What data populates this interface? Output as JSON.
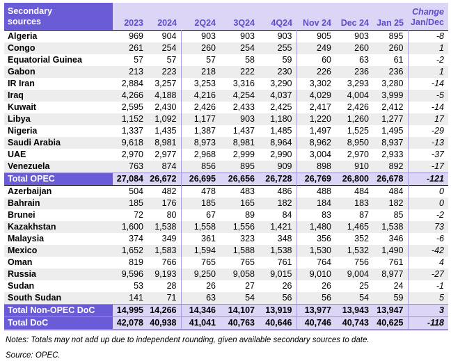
{
  "colors": {
    "header_block_purple": "#6a5bd7",
    "header_lavender": "#dcd5f5",
    "header_text_purple": "#5b4ec9",
    "row_stripe_gray": "#ededed",
    "column_separator_purple": "#a89ce2"
  },
  "table": {
    "header": {
      "label_line1": "Secondary",
      "label_line2": "sources",
      "columns": [
        "2023",
        "2024",
        "2Q24",
        "3Q24",
        "4Q24",
        "Nov 24",
        "Dec 24",
        "Jan 25"
      ],
      "change_line1": "Change",
      "change_line2": "Jan/Dec"
    },
    "rows": [
      {
        "label": "Algeria",
        "type": "data",
        "values": [
          "969",
          "904",
          "903",
          "903",
          "903",
          "905",
          "903",
          "895"
        ],
        "change": "-8"
      },
      {
        "label": "Congo",
        "type": "data",
        "values": [
          "261",
          "254",
          "260",
          "254",
          "255",
          "249",
          "260",
          "260"
        ],
        "change": "1"
      },
      {
        "label": "Equatorial Guinea",
        "type": "data",
        "values": [
          "57",
          "57",
          "57",
          "58",
          "59",
          "60",
          "63",
          "61"
        ],
        "change": "-2"
      },
      {
        "label": "Gabon",
        "type": "data",
        "values": [
          "213",
          "223",
          "218",
          "222",
          "230",
          "226",
          "236",
          "236"
        ],
        "change": "1"
      },
      {
        "label": "IR Iran",
        "type": "data",
        "values": [
          "2,884",
          "3,257",
          "3,253",
          "3,316",
          "3,290",
          "3,302",
          "3,293",
          "3,280"
        ],
        "change": "-14"
      },
      {
        "label": "Iraq",
        "type": "data",
        "values": [
          "4,266",
          "4,188",
          "4,216",
          "4,254",
          "4,037",
          "4,029",
          "4,004",
          "3,999"
        ],
        "change": "-5"
      },
      {
        "label": "Kuwait",
        "type": "data",
        "values": [
          "2,595",
          "2,430",
          "2,426",
          "2,433",
          "2,425",
          "2,417",
          "2,426",
          "2,412"
        ],
        "change": "-14"
      },
      {
        "label": "Libya",
        "type": "data",
        "values": [
          "1,152",
          "1,092",
          "1,177",
          "903",
          "1,180",
          "1,220",
          "1,260",
          "1,277"
        ],
        "change": "17"
      },
      {
        "label": "Nigeria",
        "type": "data",
        "values": [
          "1,337",
          "1,435",
          "1,387",
          "1,437",
          "1,485",
          "1,497",
          "1,525",
          "1,495"
        ],
        "change": "-29"
      },
      {
        "label": "Saudi Arabia",
        "type": "data",
        "values": [
          "9,618",
          "8,981",
          "8,973",
          "8,981",
          "8,964",
          "8,962",
          "8,950",
          "8,937"
        ],
        "change": "-13"
      },
      {
        "label": "UAE",
        "type": "data",
        "values": [
          "2,970",
          "2,977",
          "2,968",
          "2,999",
          "2,990",
          "3,004",
          "2,970",
          "2,933"
        ],
        "change": "-37"
      },
      {
        "label": "Venezuela",
        "type": "data",
        "values": [
          "763",
          "874",
          "856",
          "895",
          "909",
          "898",
          "910",
          "892"
        ],
        "change": "-17"
      },
      {
        "label": "Total OPEC",
        "type": "total",
        "values": [
          "27,084",
          "26,672",
          "26,695",
          "26,656",
          "26,728",
          "26,769",
          "26,800",
          "26,678"
        ],
        "change": "-121"
      },
      {
        "label": "Azerbaijan",
        "type": "data",
        "values": [
          "504",
          "482",
          "478",
          "483",
          "486",
          "488",
          "484",
          "484"
        ],
        "change": "0"
      },
      {
        "label": "Bahrain",
        "type": "data",
        "values": [
          "185",
          "176",
          "185",
          "165",
          "182",
          "184",
          "183",
          "182"
        ],
        "change": "0"
      },
      {
        "label": "Brunei",
        "type": "data",
        "values": [
          "72",
          "80",
          "67",
          "89",
          "84",
          "83",
          "87",
          "85"
        ],
        "change": "-2"
      },
      {
        "label": "Kazakhstan",
        "type": "data",
        "values": [
          "1,600",
          "1,538",
          "1,558",
          "1,556",
          "1,421",
          "1,480",
          "1,465",
          "1,538"
        ],
        "change": "73"
      },
      {
        "label": "Malaysia",
        "type": "data",
        "values": [
          "374",
          "349",
          "361",
          "323",
          "348",
          "356",
          "352",
          "346"
        ],
        "change": "-6"
      },
      {
        "label": "Mexico",
        "type": "data",
        "values": [
          "1,652",
          "1,583",
          "1,594",
          "1,588",
          "1,538",
          "1,530",
          "1,532",
          "1,490"
        ],
        "change": "-42"
      },
      {
        "label": "Oman",
        "type": "data",
        "values": [
          "819",
          "766",
          "765",
          "765",
          "761",
          "764",
          "756",
          "761"
        ],
        "change": "4"
      },
      {
        "label": "Russia",
        "type": "data",
        "values": [
          "9,596",
          "9,193",
          "9,250",
          "9,058",
          "9,015",
          "9,010",
          "9,004",
          "8,977"
        ],
        "change": "-27"
      },
      {
        "label": "Sudan",
        "type": "data",
        "values": [
          "53",
          "28",
          "26",
          "27",
          "26",
          "26",
          "25",
          "24"
        ],
        "change": "-1"
      },
      {
        "label": "South Sudan",
        "type": "data",
        "values": [
          "141",
          "71",
          "63",
          "54",
          "56",
          "56",
          "54",
          "59"
        ],
        "change": "5"
      },
      {
        "label": "Total Non-OPEC DoC",
        "type": "total",
        "values": [
          "14,995",
          "14,266",
          "14,346",
          "14,107",
          "13,919",
          "13,977",
          "13,943",
          "13,947"
        ],
        "change": "3"
      },
      {
        "label": "Total DoC",
        "type": "total",
        "values": [
          "42,078",
          "40,938",
          "41,041",
          "40,763",
          "40,646",
          "40,746",
          "40,743",
          "40,625"
        ],
        "change": "-118"
      }
    ],
    "notes": "Notes: Totals may not add up due to independent rounding, given available secondary sources to date.",
    "source": "Source: OPEC."
  }
}
